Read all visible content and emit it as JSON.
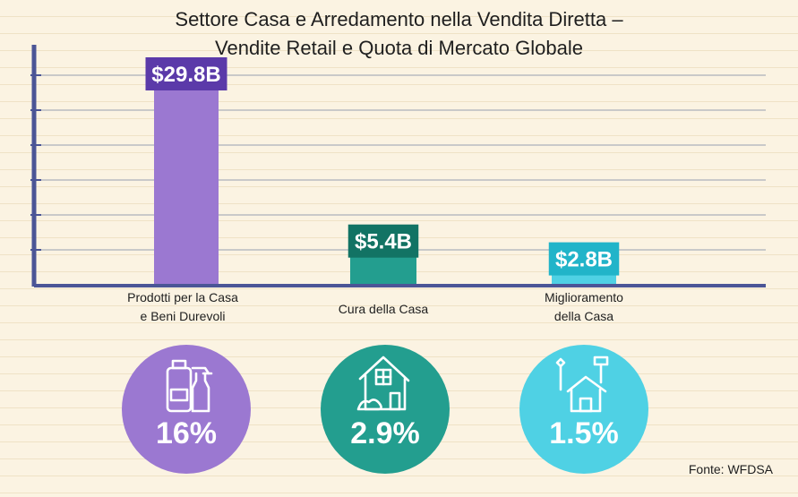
{
  "title_line1": "Settore Casa e Arredamento nella Vendita Diretta –",
  "title_line2": "Vendite Retail e Quota di Mercato Globale",
  "source": "Fonte: WFDSA",
  "colors": {
    "axis": "#4b5596",
    "grid": "#c9c9c9",
    "bars": [
      "#9b78d1",
      "#239e8f",
      "#4fd1e4"
    ],
    "label_boxes": [
      "#5b3aa9",
      "#127364",
      "#21b4c9"
    ]
  },
  "chart_data": {
    "type": "bar",
    "categories": [
      {
        "line1": "Prodotti per la Casa",
        "line2": "e Beni Durevoli"
      },
      {
        "line1": "Cura della Casa",
        "line2": ""
      },
      {
        "line1": "Miglioramento",
        "line2": "della Casa"
      }
    ],
    "values": [
      29.8,
      5.4,
      2.8
    ],
    "value_labels": [
      "$29.8B",
      "$5.4B",
      "$2.8B"
    ],
    "unit": "USD billions",
    "title": "Settore Casa e Arredamento nella Vendita Diretta – Vendite Retail e Quota di Mercato Globale",
    "grid": true,
    "y_tick_labels_shown": false
  },
  "market_share": [
    {
      "value": "16%",
      "icon": "household-cleaning-products-icon",
      "color": "#9b78d1"
    },
    {
      "value": "2.9%",
      "icon": "house-garden-icon",
      "color": "#239e8f"
    },
    {
      "value": "1.5%",
      "icon": "house-tools-icon",
      "color": "#4fd1e4"
    }
  ]
}
